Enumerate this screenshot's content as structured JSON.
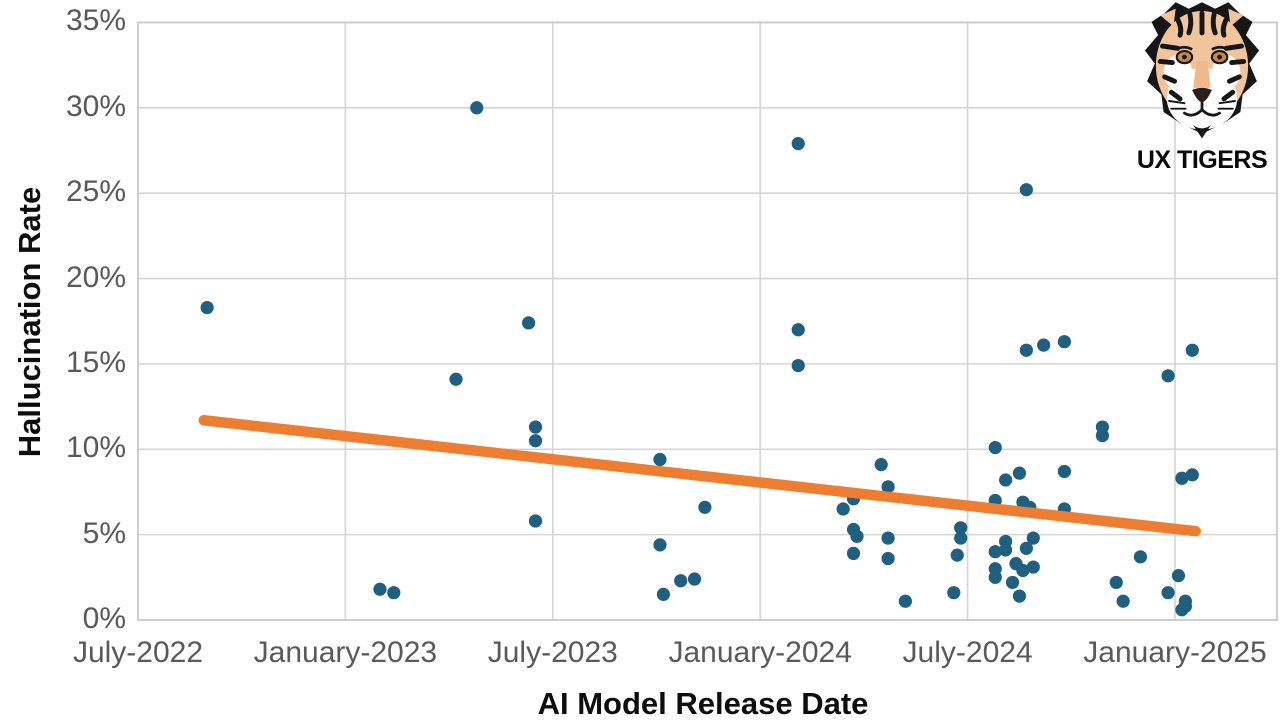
{
  "header": {
    "brand": "UX TIGERS"
  },
  "chart_data": {
    "type": "scatter",
    "title": "",
    "xlabel": "AI Model Release Date",
    "ylabel": "Hallucination Rate",
    "x_unit": "months since July-2022",
    "xlim_months": [
      0,
      32.95
    ],
    "ylim": [
      0,
      35
    ],
    "grid": true,
    "legend": "none",
    "x_ticks": [
      {
        "label": "July-2022",
        "m": 0
      },
      {
        "label": "January-2023",
        "m": 6
      },
      {
        "label": "July-2023",
        "m": 12
      },
      {
        "label": "January-2024",
        "m": 18
      },
      {
        "label": "July-2024",
        "m": 24
      },
      {
        "label": "January-2025",
        "m": 30
      }
    ],
    "y_ticks": [
      {
        "label": "0%",
        "v": 0
      },
      {
        "label": "5%",
        "v": 5
      },
      {
        "label": "10%",
        "v": 10
      },
      {
        "label": "15%",
        "v": 15
      },
      {
        "label": "20%",
        "v": 20
      },
      {
        "label": "25%",
        "v": 25
      },
      {
        "label": "30%",
        "v": 30
      },
      {
        "label": "35%",
        "v": 35
      }
    ],
    "points_format": "[months_since_July-2022, hallucination_rate_percent]",
    "points": [
      [
        2.0,
        18.3
      ],
      [
        9.8,
        30.0
      ],
      [
        9.2,
        14.1
      ],
      [
        11.3,
        17.4
      ],
      [
        11.5,
        11.3
      ],
      [
        11.5,
        10.5
      ],
      [
        11.5,
        5.8
      ],
      [
        7.0,
        1.8
      ],
      [
        7.4,
        1.6
      ],
      [
        15.1,
        9.4
      ],
      [
        16.4,
        6.6
      ],
      [
        15.1,
        4.4
      ],
      [
        15.2,
        1.5
      ],
      [
        15.7,
        2.3
      ],
      [
        16.1,
        2.4
      ],
      [
        19.1,
        27.9
      ],
      [
        19.1,
        17.0
      ],
      [
        19.1,
        14.9
      ],
      [
        20.4,
        6.5
      ],
      [
        20.7,
        7.1
      ],
      [
        20.7,
        5.3
      ],
      [
        20.8,
        4.9
      ],
      [
        20.7,
        3.9
      ],
      [
        21.5,
        9.1
      ],
      [
        21.7,
        7.8
      ],
      [
        21.7,
        4.8
      ],
      [
        21.7,
        3.6
      ],
      [
        22.2,
        1.1
      ],
      [
        25.7,
        25.2
      ],
      [
        23.6,
        1.6
      ],
      [
        23.7,
        3.8
      ],
      [
        23.8,
        5.4
      ],
      [
        23.8,
        4.8
      ],
      [
        24.8,
        10.1
      ],
      [
        25.1,
        8.2
      ],
      [
        25.5,
        8.6
      ],
      [
        26.8,
        8.7
      ],
      [
        24.8,
        7.0
      ],
      [
        25.6,
        6.9
      ],
      [
        25.8,
        6.6
      ],
      [
        26.8,
        6.5
      ],
      [
        25.7,
        15.8
      ],
      [
        26.2,
        16.1
      ],
      [
        26.8,
        16.3
      ],
      [
        25.1,
        4.6
      ],
      [
        25.1,
        4.1
      ],
      [
        24.8,
        4.0
      ],
      [
        25.9,
        4.8
      ],
      [
        25.7,
        4.2
      ],
      [
        25.9,
        3.1
      ],
      [
        25.6,
        2.9
      ],
      [
        25.4,
        3.3
      ],
      [
        24.8,
        3.0
      ],
      [
        24.8,
        2.5
      ],
      [
        25.3,
        2.2
      ],
      [
        25.5,
        1.4
      ],
      [
        27.9,
        11.3
      ],
      [
        27.9,
        10.8
      ],
      [
        29.0,
        3.7
      ],
      [
        28.3,
        2.2
      ],
      [
        28.5,
        1.1
      ],
      [
        30.1,
        2.6
      ],
      [
        29.8,
        1.6
      ],
      [
        29.8,
        14.3
      ],
      [
        30.5,
        15.8
      ],
      [
        30.2,
        8.3
      ],
      [
        30.5,
        8.5
      ],
      [
        30.3,
        1.1
      ],
      [
        30.3,
        0.8
      ],
      [
        30.2,
        0.6
      ]
    ],
    "trendline": {
      "x1_m": 1.9,
      "y1": 11.7,
      "x2_m": 30.6,
      "y2": 5.2
    },
    "colors": {
      "point": "#1F5F7F",
      "trend": "#ED7D31",
      "grid": "#D4D4D4",
      "plot_border": "#C9C9C9",
      "tick_label": "#595959",
      "axis_title": "#0D0D0D",
      "background": "#FFFFFF"
    }
  },
  "logo": {
    "text": "UX TIGERS",
    "fur_color": "#F2C49B",
    "line_color": "#161616",
    "muzzle_color": "#FFFFFF",
    "eye_color": "#C98A3B"
  }
}
